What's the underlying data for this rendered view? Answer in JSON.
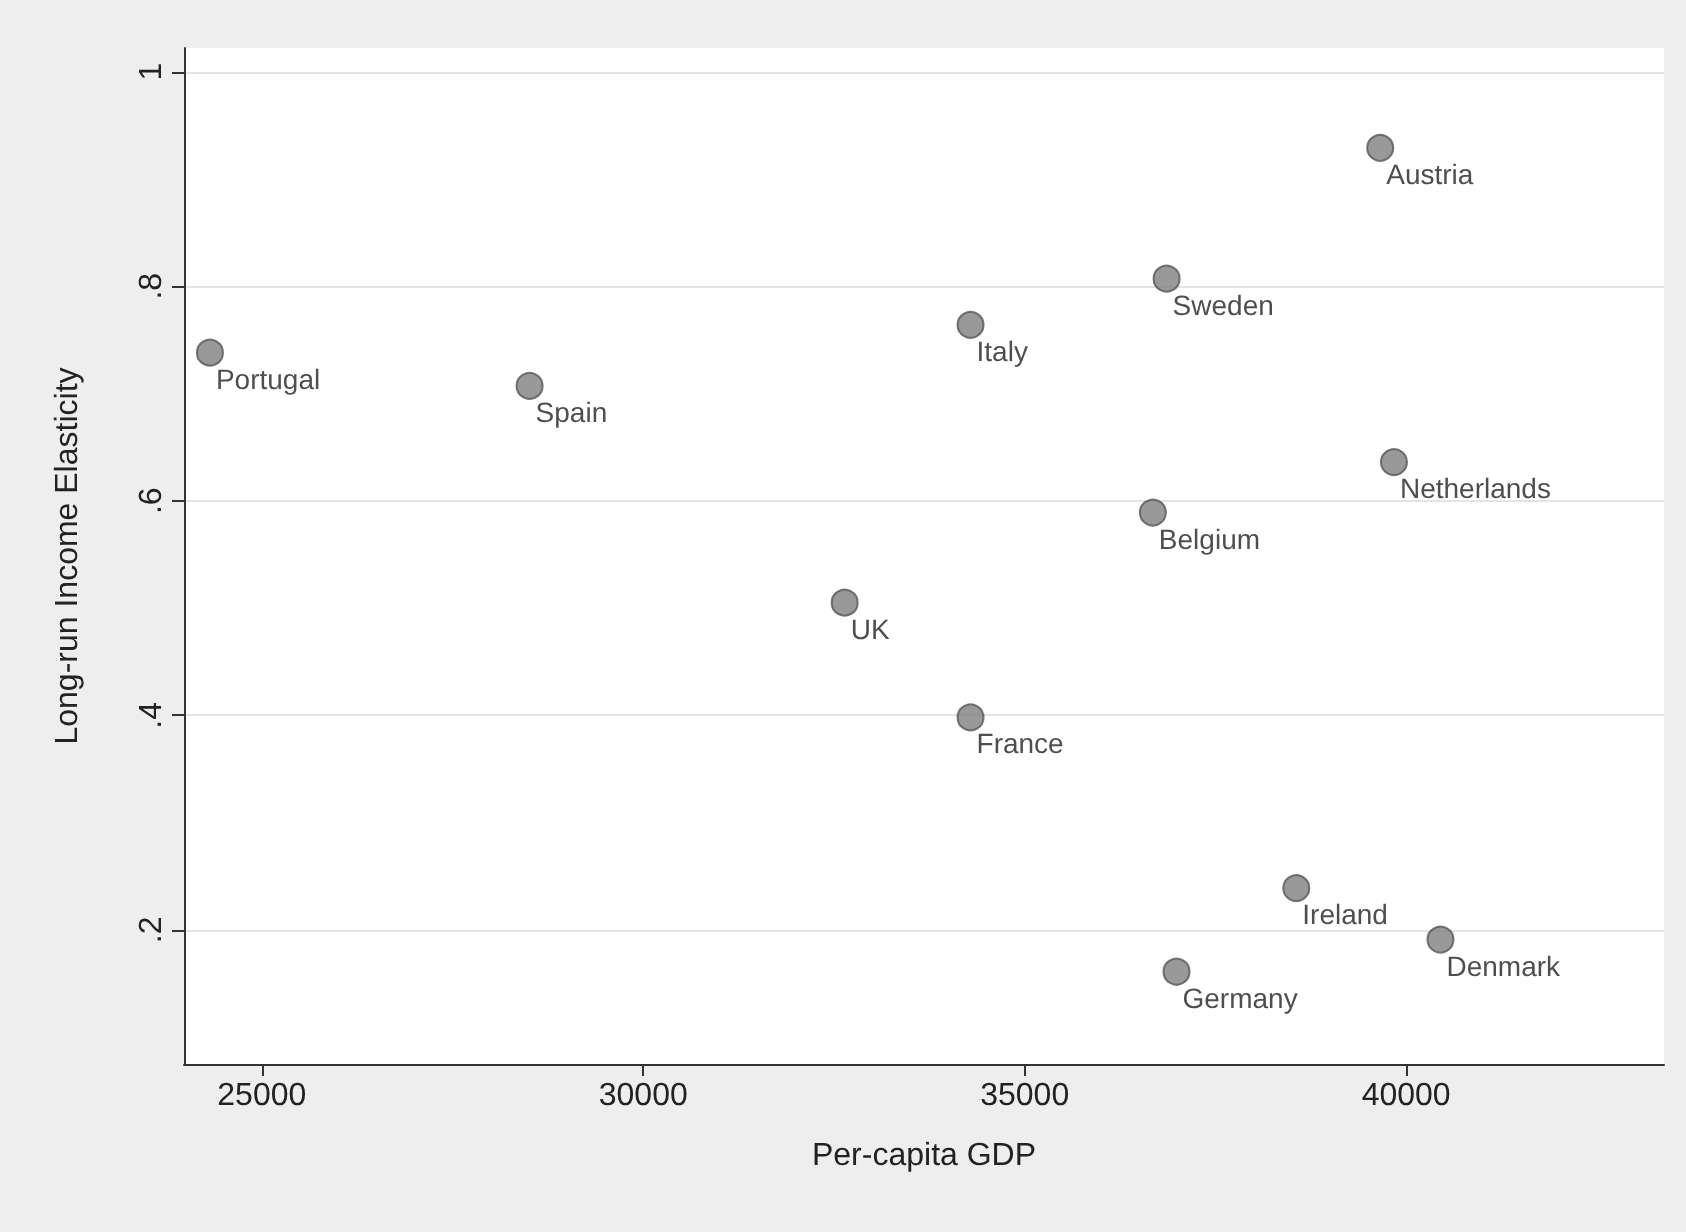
{
  "chart_data": {
    "type": "scatter",
    "xlabel": "Per-capita GDP",
    "ylabel": "Long-run Income Elasticity",
    "marker": "circle",
    "grid": "y",
    "legend": false,
    "xlim": [
      23980,
      43380
    ],
    "xticks": [
      25000,
      30000,
      35000,
      40000
    ],
    "ylim": [
      0.075,
      1.022
    ],
    "yticks": [
      {
        "value": 0.2,
        "label": ".2"
      },
      {
        "value": 0.4,
        "label": ".4"
      },
      {
        "value": 0.6,
        "label": ".6"
      },
      {
        "value": 0.8,
        "label": ".8"
      },
      1
    ],
    "series": [
      {
        "name": "Portugal",
        "color": "#7f7f7f",
        "x": [
          24320
        ],
        "values": [
          0.738
        ]
      },
      {
        "name": "Spain",
        "color": "#7f7f7f",
        "x": [
          28510
        ],
        "values": [
          0.707
        ]
      },
      {
        "name": "UK",
        "color": "#7f7f7f",
        "x": [
          32640
        ],
        "values": [
          0.505
        ]
      },
      {
        "name": "Italy",
        "color": "#7f7f7f",
        "x": [
          34290
        ],
        "values": [
          0.764
        ]
      },
      {
        "name": "France",
        "color": "#7f7f7f",
        "x": [
          34290
        ],
        "values": [
          0.398
        ]
      },
      {
        "name": "Sweden",
        "color": "#7f7f7f",
        "x": [
          36860
        ],
        "values": [
          0.807
        ]
      },
      {
        "name": "Belgium",
        "color": "#7f7f7f",
        "x": [
          36680
        ],
        "values": [
          0.589
        ]
      },
      {
        "name": "Austria",
        "color": "#7f7f7f",
        "x": [
          39660
        ],
        "values": [
          0.929
        ]
      },
      {
        "name": "Netherlands",
        "color": "#7f7f7f",
        "x": [
          39840
        ],
        "values": [
          0.636
        ]
      },
      {
        "name": "Ireland",
        "color": "#7f7f7f",
        "x": [
          38560
        ],
        "values": [
          0.239
        ]
      },
      {
        "name": "Denmark",
        "color": "#7f7f7f",
        "x": [
          40450
        ],
        "values": [
          0.191
        ]
      },
      {
        "name": "Germany",
        "color": "#7f7f7f",
        "x": [
          36990
        ],
        "values": [
          0.161
        ]
      }
    ]
  }
}
